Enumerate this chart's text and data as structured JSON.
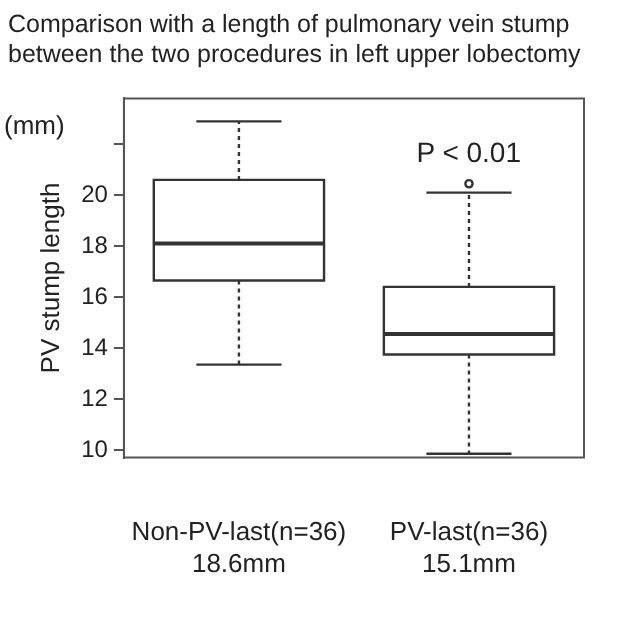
{
  "chart_data": {
    "type": "box",
    "title": "Comparison with a length of pulmonary vein stump between the two procedures in left upper lobectomy",
    "ylabel": "PV stump length",
    "categories": [
      "Non-PV-last(n=36)\n18.6mm",
      "PV-last(n=36)\n15.1mm"
    ],
    "boxes": [
      {
        "low": 13.35,
        "q1": 16.65,
        "median": 18.1,
        "q3": 20.6,
        "high": 22.9
      },
      {
        "low": 9.85,
        "q1": 13.75,
        "median": 14.55,
        "q3": 16.4,
        "high": 20.1,
        "outliers": [
          20.45
        ]
      }
    ],
    "color": "#333333",
    "ylim": [
      9.7,
      23.8
    ],
    "yticks": [
      10,
      12,
      14,
      16,
      18,
      20,
      {
        "value": 22,
        "label": null
      }
    ],
    "grid": false,
    "legend": false,
    "annotations": [
      "(mm)",
      "P < 0.01"
    ]
  }
}
